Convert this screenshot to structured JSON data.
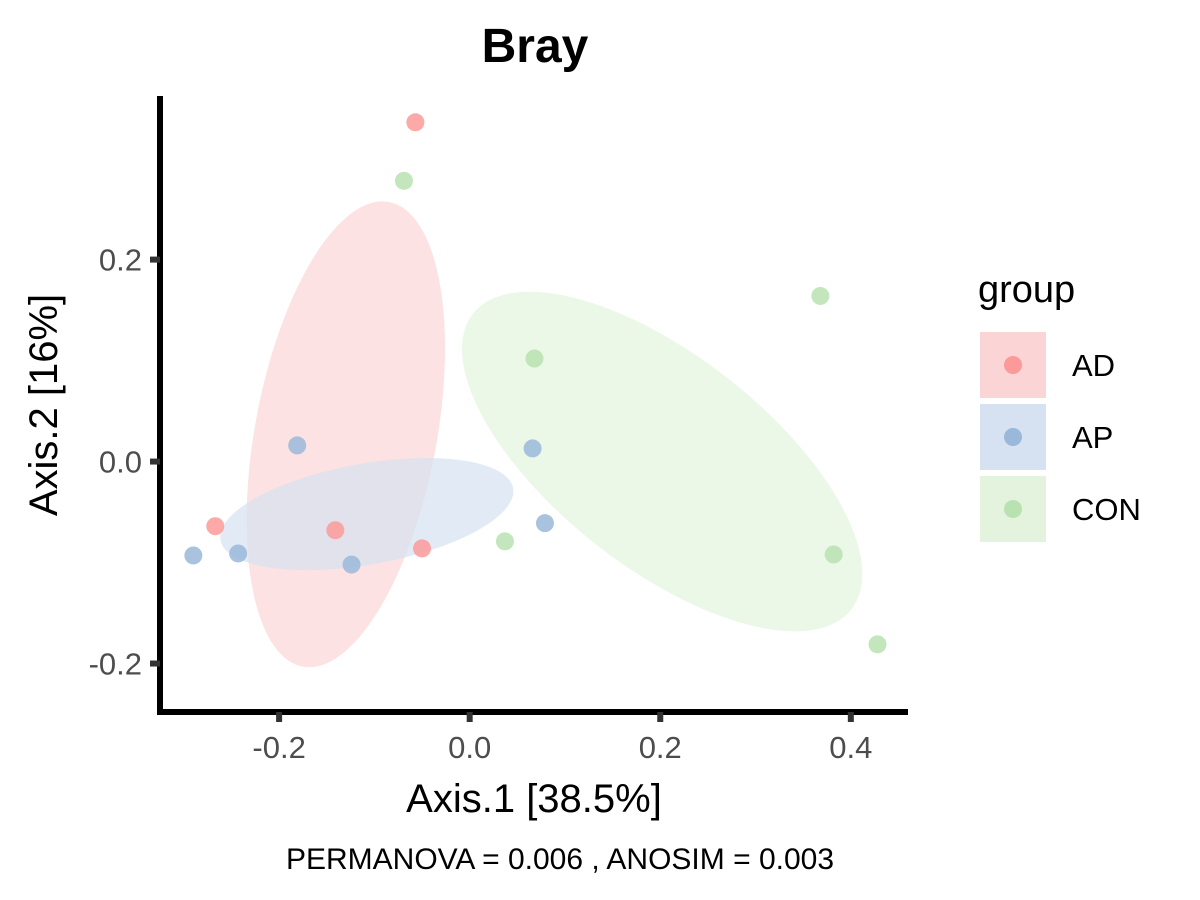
{
  "chart_data": {
    "type": "scatter",
    "title": "Bray",
    "xlabel": "Axis.1   [38.5%]",
    "ylabel": "Axis.2   [16%]",
    "caption": "PERMANOVA =  0.006 , ANOSIM =  0.003",
    "xlim": [
      -0.325,
      0.46
    ],
    "ylim": [
      -0.248,
      0.362
    ],
    "x_ticks": [
      -0.2,
      0.0,
      0.2,
      0.4
    ],
    "x_tick_labels": [
      "-0.2",
      "0.0",
      "0.2",
      "0.4"
    ],
    "y_ticks": [
      -0.2,
      0.0,
      0.2
    ],
    "y_tick_labels": [
      "-0.2",
      "0.0",
      "0.2"
    ],
    "grid": false,
    "legend_title": "group",
    "legend_position": "right",
    "series": [
      {
        "name": "AD",
        "color": "#fb9a99",
        "ellipse_color": "#fbd5d5",
        "points": [
          {
            "x": -0.057,
            "y": 0.336
          },
          {
            "x": -0.267,
            "y": -0.064
          },
          {
            "x": -0.141,
            "y": -0.068
          },
          {
            "x": -0.05,
            "y": -0.086
          }
        ],
        "ellipse": {
          "cx": -0.13,
          "cy": 0.027,
          "rx": 0.248,
          "ry": 0.09,
          "angle_deg": 79.5
        }
      },
      {
        "name": "AP",
        "color": "#9ab8d9",
        "ellipse_color": "#d6e2f1",
        "points": [
          {
            "x": -0.29,
            "y": -0.093
          },
          {
            "x": -0.243,
            "y": -0.091
          },
          {
            "x": -0.181,
            "y": 0.016
          },
          {
            "x": -0.124,
            "y": -0.102
          },
          {
            "x": 0.066,
            "y": 0.013
          },
          {
            "x": 0.079,
            "y": -0.061
          }
        ],
        "ellipse": {
          "cx": -0.108,
          "cy": -0.052,
          "rx": 0.156,
          "ry": 0.05,
          "angle_deg": 10
        }
      },
      {
        "name": "CON",
        "color": "#b8e2b0",
        "ellipse_color": "#e3f3dd",
        "points": [
          {
            "x": -0.069,
            "y": 0.278
          },
          {
            "x": 0.068,
            "y": 0.102
          },
          {
            "x": 0.037,
            "y": -0.079
          },
          {
            "x": 0.368,
            "y": 0.164
          },
          {
            "x": 0.382,
            "y": -0.092
          },
          {
            "x": 0.428,
            "y": -0.181
          }
        ],
        "ellipse": {
          "cx": 0.202,
          "cy": 0.0,
          "rx": 0.252,
          "ry": 0.105,
          "angle_deg": -38
        }
      }
    ]
  }
}
